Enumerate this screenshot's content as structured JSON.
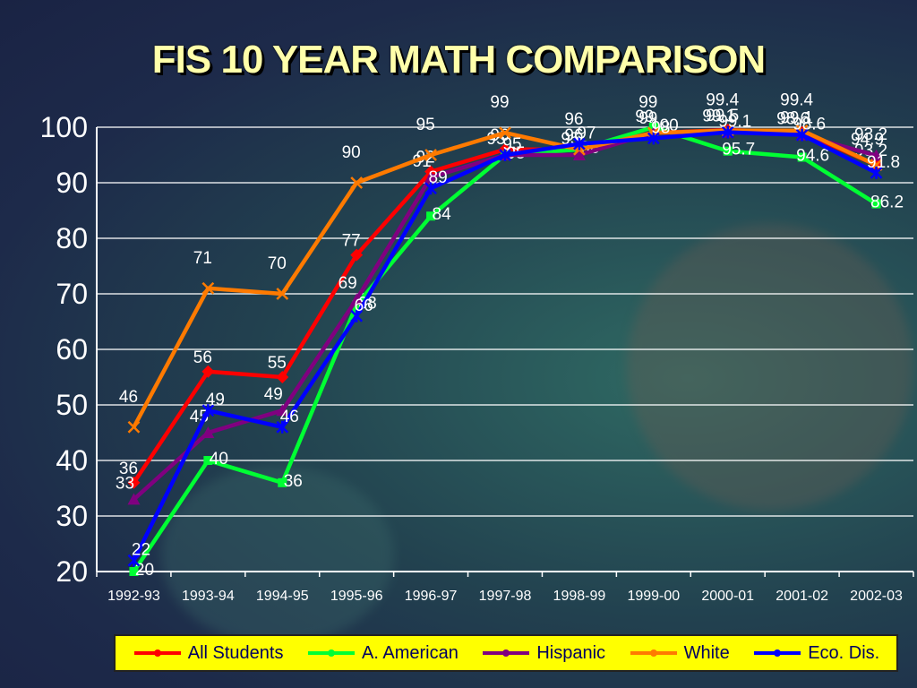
{
  "title": "FIS 10 YEAR MATH COMPARISON",
  "chart_data": {
    "type": "line",
    "title": "FIS 10 YEAR MATH COMPARISON",
    "xlabel": "",
    "ylabel": "",
    "categories": [
      "1992-93",
      "1993-94",
      "1994-95",
      "1995-96",
      "1996-97",
      "1997-98",
      "1998-99",
      "1999-00",
      "2000-01",
      "2001-02",
      "2002-03"
    ],
    "ylim": [
      20,
      100
    ],
    "yticks": [
      20,
      30,
      40,
      50,
      60,
      70,
      80,
      90,
      100
    ],
    "grid": true,
    "legend_position": "bottom",
    "series": [
      {
        "name": "All Students",
        "color": "#ff0000",
        "marker": "diamond",
        "values": [
          36,
          56,
          55,
          77,
          92,
          96,
          96,
          99,
          99.5,
          99.1,
          93.2
        ],
        "labels": [
          "36",
          "56",
          "55",
          "77",
          "92",
          "96",
          "96",
          "99",
          "99.5",
          "99.1",
          "93.2"
        ]
      },
      {
        "name": "A. American",
        "color": "#00ff33",
        "marker": "square",
        "values": [
          20,
          40,
          36,
          68,
          84,
          95,
          96,
          100,
          95.7,
          94.6,
          86.2
        ],
        "labels": [
          "20",
          "40",
          "36",
          "68",
          "84",
          "95",
          "96",
          "100",
          "95.7",
          "94.6",
          "86.2"
        ]
      },
      {
        "name": "Hispanic",
        "color": "#800080",
        "marker": "triangle",
        "values": [
          33,
          45,
          49,
          69,
          91,
          95,
          95,
          99,
          99.1,
          98.6,
          94.9
        ],
        "labels": [
          "33",
          "45",
          "49",
          "69",
          "91",
          "95",
          "95",
          "99",
          "99.1",
          "98.6",
          "94.9"
        ]
      },
      {
        "name": "White",
        "color": "#ff7a00",
        "marker": "x",
        "values": [
          46,
          71,
          70,
          90,
          95,
          99,
          96,
          99,
          99.4,
          99.4,
          93.2
        ],
        "labels": [
          "46",
          "71",
          "70",
          "90",
          "95",
          "99",
          "96",
          "99",
          "99.4",
          "99.4",
          "93.2"
        ]
      },
      {
        "name": "Eco. Dis.",
        "color": "#0000ff",
        "marker": "star",
        "values": [
          22,
          49,
          46,
          66,
          89,
          95,
          97,
          98,
          99.1,
          98.6,
          91.8
        ],
        "labels": [
          "22",
          "49",
          "46",
          "66",
          "89",
          "95",
          "97",
          "98",
          "99.1",
          "98.6",
          "91.8"
        ]
      }
    ]
  }
}
